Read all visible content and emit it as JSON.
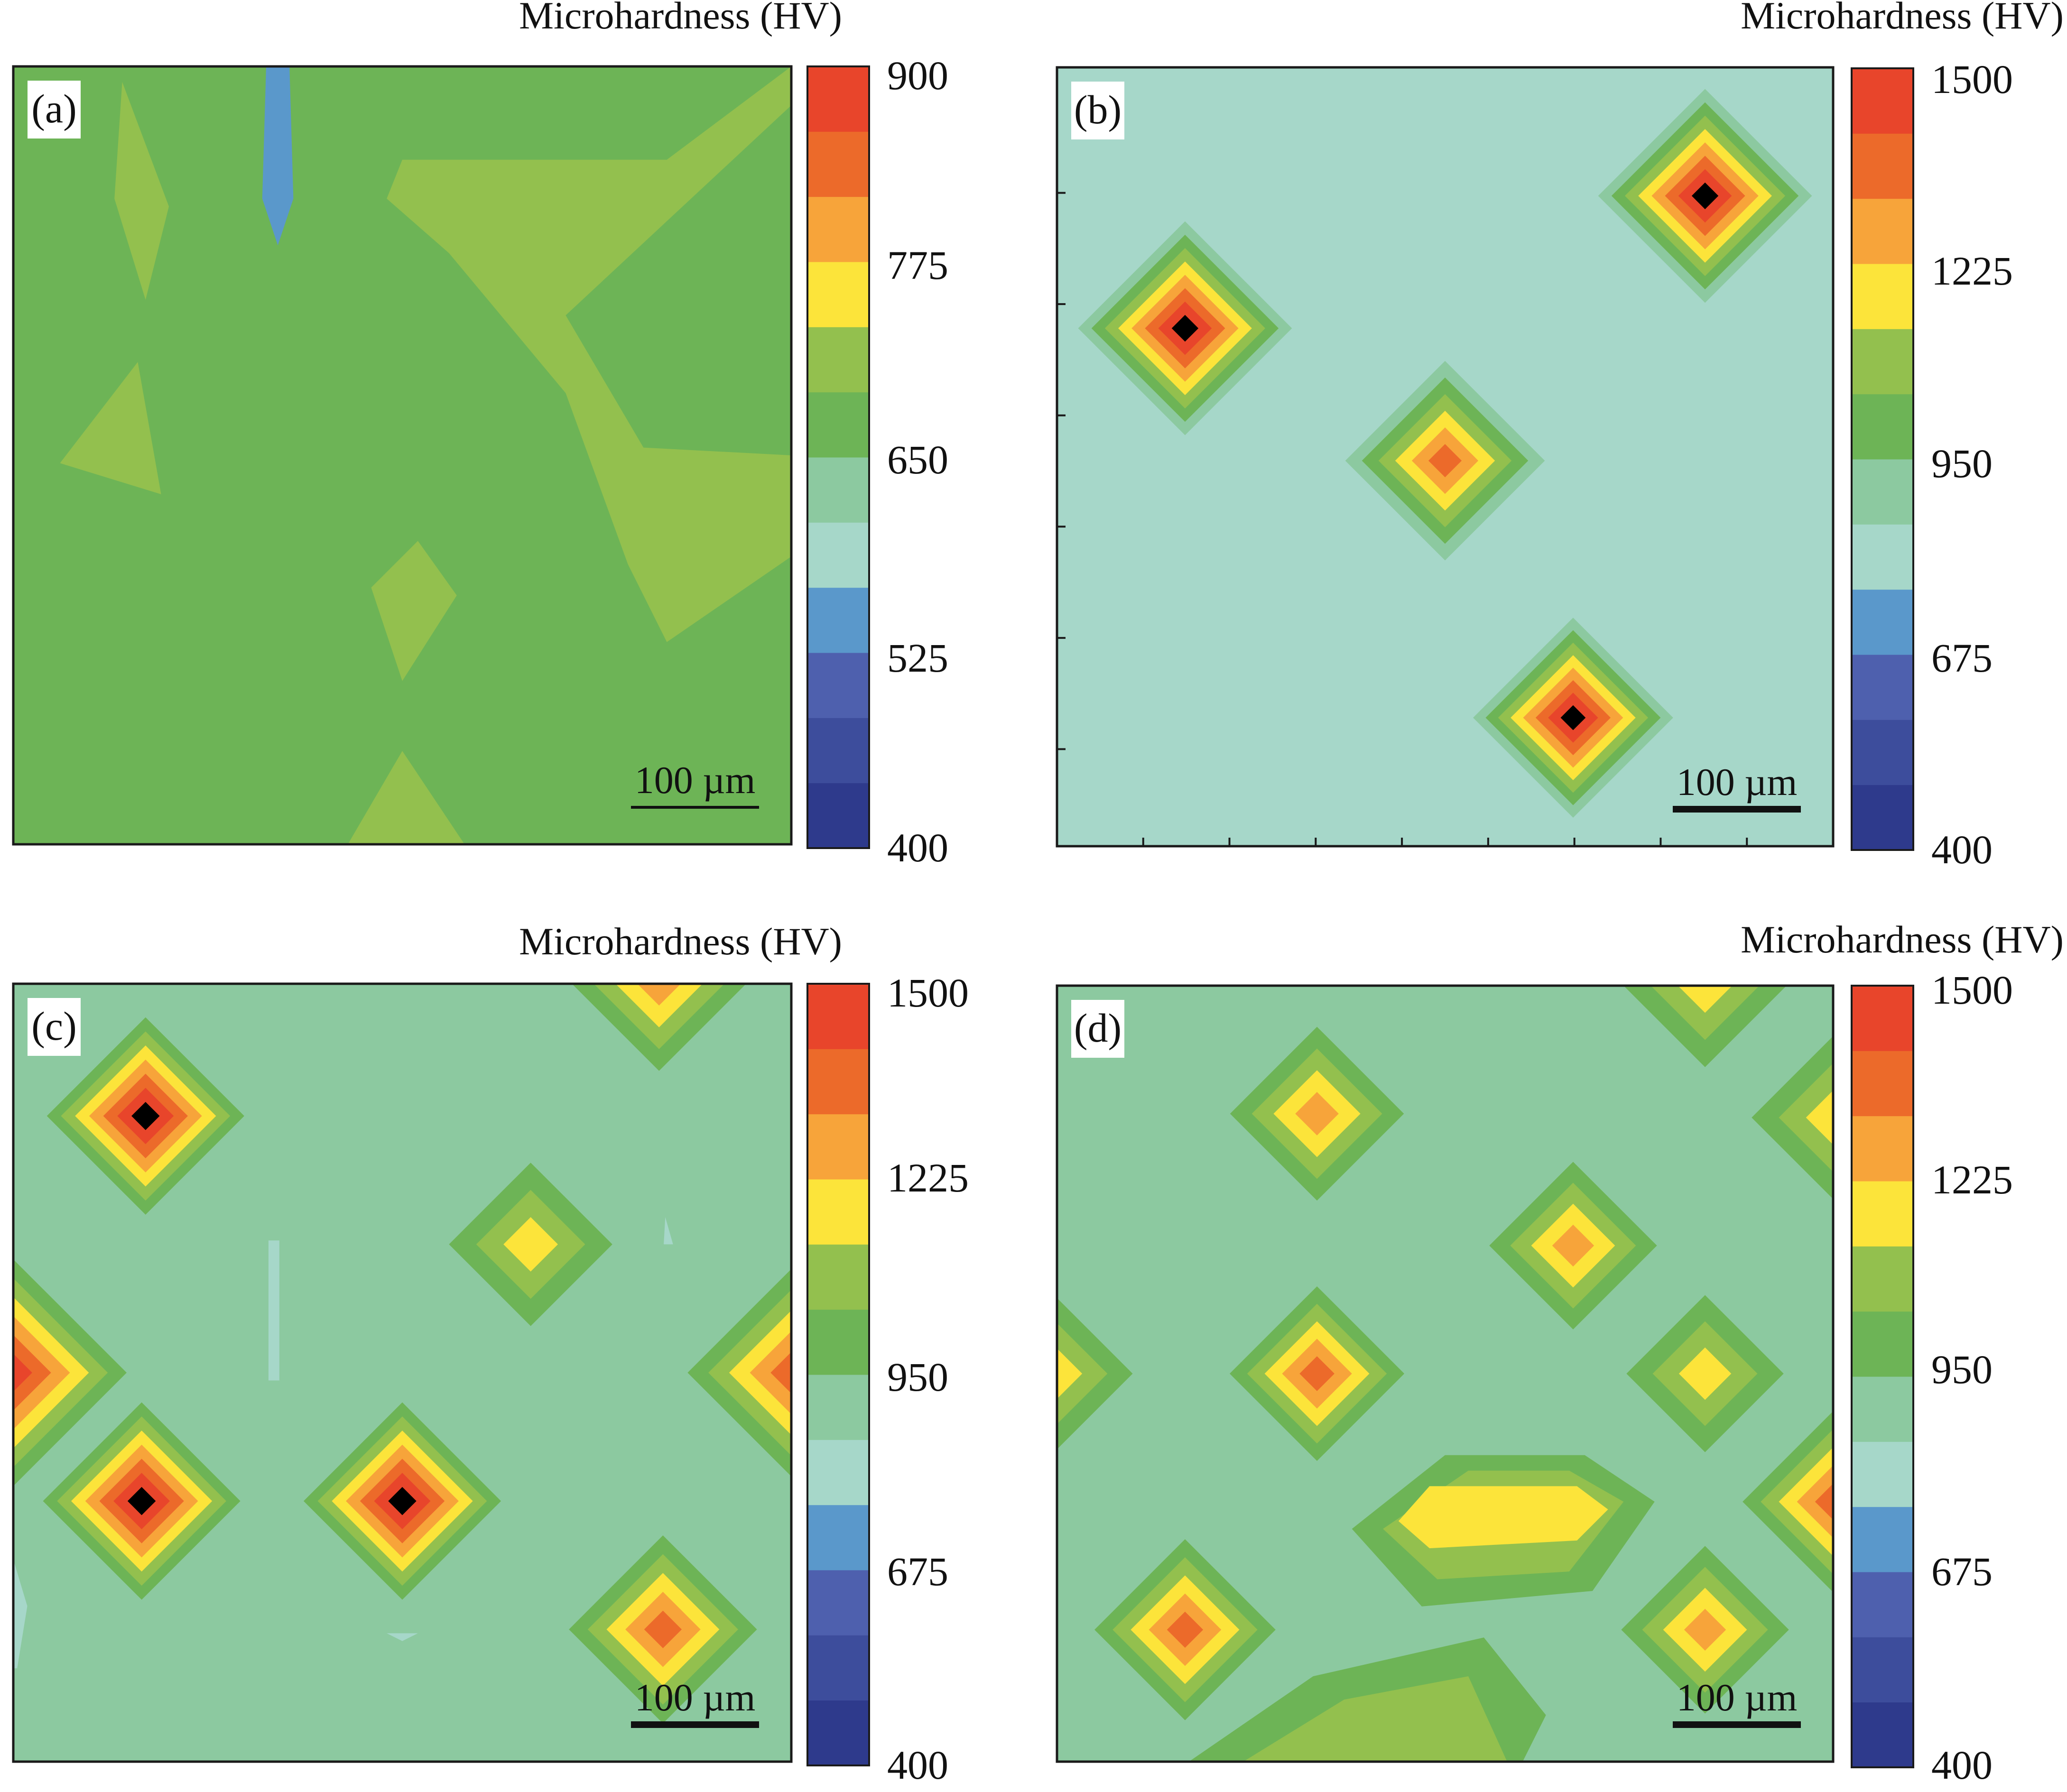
{
  "chart_data": [
    {
      "type": "heatmap",
      "panel_label": "(a)",
      "colorbar_title": "Microhardness (HV)",
      "colorbar_ticks": [
        "900",
        "775",
        "650",
        "525",
        "400"
      ],
      "colorbar_range": [
        400,
        900
      ],
      "scale_bar_label": "100 µm",
      "background_level": 6,
      "features": [
        {
          "shape": "polygon",
          "level": 7,
          "pts": [
            [
              0.14,
              0.02
            ],
            [
              0.2,
              0.18
            ],
            [
              0.17,
              0.3
            ],
            [
              0.13,
              0.17
            ]
          ]
        },
        {
          "shape": "polygon",
          "level": 3,
          "pts": [
            [
              0.325,
              0.0
            ],
            [
              0.355,
              0.0
            ],
            [
              0.36,
              0.17
            ],
            [
              0.34,
              0.23
            ],
            [
              0.32,
              0.17
            ]
          ]
        },
        {
          "shape": "polygon",
          "level": 7,
          "pts": [
            [
              0.16,
              0.38
            ],
            [
              0.19,
              0.55
            ],
            [
              0.06,
              0.51
            ]
          ]
        },
        {
          "shape": "polygon",
          "level": 7,
          "pts": [
            [
              0.5,
              0.12
            ],
            [
              0.84,
              0.12
            ],
            [
              1.0,
              0.0
            ],
            [
              1.0,
              0.05
            ],
            [
              0.71,
              0.32
            ],
            [
              0.81,
              0.49
            ],
            [
              1.0,
              0.5
            ],
            [
              1.0,
              0.63
            ],
            [
              0.84,
              0.74
            ],
            [
              0.79,
              0.64
            ],
            [
              0.71,
              0.42
            ],
            [
              0.56,
              0.24
            ],
            [
              0.48,
              0.17
            ]
          ]
        },
        {
          "shape": "polygon",
          "level": 7,
          "pts": [
            [
              0.52,
              0.61
            ],
            [
              0.57,
              0.68
            ],
            [
              0.5,
              0.79
            ],
            [
              0.46,
              0.67
            ]
          ]
        },
        {
          "shape": "polygon",
          "level": 7,
          "pts": [
            [
              0.5,
              0.88
            ],
            [
              0.58,
              1.0
            ],
            [
              0.43,
              1.0
            ]
          ]
        }
      ]
    },
    {
      "type": "heatmap",
      "panel_label": "(b)",
      "colorbar_title": "Microhardness (HV)",
      "colorbar_ticks": [
        "1500",
        "1225",
        "950",
        "675",
        "400"
      ],
      "colorbar_range": [
        400,
        1500
      ],
      "scale_bar_label": "100 µm",
      "background_level": 4,
      "features": [
        {
          "shape": "diamond",
          "cx": 0.165,
          "cy": 0.335,
          "r": 0.155,
          "peak": 12
        },
        {
          "shape": "diamond",
          "cx": 0.835,
          "cy": 0.165,
          "r": 0.155,
          "peak": 12
        },
        {
          "shape": "diamond",
          "cx": 0.5,
          "cy": 0.505,
          "r": 0.15,
          "peak": 10
        },
        {
          "shape": "diamond",
          "cx": 0.665,
          "cy": 0.835,
          "r": 0.145,
          "peak": 12
        }
      ]
    },
    {
      "type": "heatmap",
      "panel_label": "(c)",
      "colorbar_title": "Microhardness (HV)",
      "colorbar_ticks": [
        "1500",
        "1225",
        "950",
        "675",
        "400"
      ],
      "colorbar_range": [
        400,
        1500
      ],
      "scale_bar_label": "100 µm",
      "background_level": 5,
      "features": [
        {
          "shape": "diamond",
          "cx": 0.17,
          "cy": 0.17,
          "r": 0.145,
          "peak": 12
        },
        {
          "shape": "diamond",
          "cx": 0.83,
          "cy": 0.0,
          "r": 0.14,
          "peak": 9
        },
        {
          "shape": "diamond",
          "cx": 0.665,
          "cy": 0.335,
          "r": 0.14,
          "peak": 8
        },
        {
          "shape": "diamond",
          "cx": 0.0,
          "cy": 0.5,
          "r": 0.17,
          "peak": 11
        },
        {
          "shape": "diamond",
          "cx": 1.0,
          "cy": 0.5,
          "r": 0.16,
          "peak": 10
        },
        {
          "shape": "diamond",
          "cx": 0.165,
          "cy": 0.665,
          "r": 0.145,
          "peak": 12
        },
        {
          "shape": "diamond",
          "cx": 0.5,
          "cy": 0.665,
          "r": 0.145,
          "peak": 12
        },
        {
          "shape": "diamond",
          "cx": 0.835,
          "cy": 0.83,
          "r": 0.145,
          "peak": 10
        },
        {
          "shape": "polygon",
          "level": 4,
          "pts": [
            [
              0.328,
              0.33
            ],
            [
              0.342,
              0.33
            ],
            [
              0.342,
              0.51
            ],
            [
              0.328,
              0.51
            ]
          ]
        },
        {
          "shape": "polygon",
          "level": 4,
          "pts": [
            [
              0.838,
              0.3
            ],
            [
              0.848,
              0.335
            ],
            [
              0.836,
              0.335
            ]
          ]
        },
        {
          "shape": "polygon",
          "level": 4,
          "pts": [
            [
              0.0,
              0.74
            ],
            [
              0.018,
              0.8
            ],
            [
              0.005,
              0.88
            ],
            [
              0.0,
              0.88
            ]
          ]
        },
        {
          "shape": "polygon",
          "level": 4,
          "pts": [
            [
              0.48,
              0.835
            ],
            [
              0.52,
              0.835
            ],
            [
              0.5,
              0.845
            ]
          ]
        }
      ]
    },
    {
      "type": "heatmap",
      "panel_label": "(d)",
      "colorbar_title": "Microhardness (HV)",
      "colorbar_ticks": [
        "1500",
        "1225",
        "950",
        "675",
        "400"
      ],
      "colorbar_range": [
        400,
        1500
      ],
      "scale_bar_label": "100 µm",
      "background_level": 5,
      "features": [
        {
          "shape": "diamond",
          "cx": 0.835,
          "cy": 0.0,
          "r": 0.14,
          "peak": 8
        },
        {
          "shape": "diamond",
          "cx": 1.0,
          "cy": 0.17,
          "r": 0.14,
          "peak": 8
        },
        {
          "shape": "diamond",
          "cx": 0.335,
          "cy": 0.165,
          "r": 0.14,
          "peak": 9
        },
        {
          "shape": "diamond",
          "cx": 0.665,
          "cy": 0.335,
          "r": 0.135,
          "peak": 9
        },
        {
          "shape": "diamond",
          "cx": 0.0,
          "cy": 0.5,
          "r": 0.13,
          "peak": 8
        },
        {
          "shape": "diamond",
          "cx": 0.335,
          "cy": 0.5,
          "r": 0.135,
          "peak": 10
        },
        {
          "shape": "diamond",
          "cx": 0.835,
          "cy": 0.5,
          "r": 0.135,
          "peak": 8
        },
        {
          "shape": "diamond",
          "cx": 1.0,
          "cy": 0.665,
          "r": 0.14,
          "peak": 10
        },
        {
          "shape": "diamond",
          "cx": 0.165,
          "cy": 0.83,
          "r": 0.14,
          "peak": 10
        },
        {
          "shape": "diamond",
          "cx": 0.835,
          "cy": 0.83,
          "r": 0.135,
          "peak": 9
        },
        {
          "shape": "polygon",
          "level": 6,
          "pts": [
            [
              0.5,
              0.605
            ],
            [
              0.68,
              0.605
            ],
            [
              0.77,
              0.665
            ],
            [
              0.69,
              0.78
            ],
            [
              0.47,
              0.8
            ],
            [
              0.38,
              0.7
            ]
          ]
        },
        {
          "shape": "polygon",
          "level": 7,
          "pts": [
            [
              0.53,
              0.625
            ],
            [
              0.66,
              0.625
            ],
            [
              0.73,
              0.665
            ],
            [
              0.66,
              0.755
            ],
            [
              0.49,
              0.765
            ],
            [
              0.42,
              0.7
            ]
          ]
        },
        {
          "shape": "polygon",
          "level": 8,
          "pts": [
            [
              0.48,
              0.645
            ],
            [
              0.67,
              0.645
            ],
            [
              0.71,
              0.675
            ],
            [
              0.67,
              0.715
            ],
            [
              0.48,
              0.725
            ],
            [
              0.44,
              0.69
            ]
          ]
        },
        {
          "shape": "polygon",
          "level": 6,
          "pts": [
            [
              0.17,
              1.0
            ],
            [
              0.33,
              0.89
            ],
            [
              0.55,
              0.84
            ],
            [
              0.63,
              0.94
            ],
            [
              0.6,
              1.0
            ]
          ]
        },
        {
          "shape": "polygon",
          "level": 7,
          "pts": [
            [
              0.24,
              1.0
            ],
            [
              0.37,
              0.92
            ],
            [
              0.53,
              0.89
            ],
            [
              0.58,
              1.0
            ]
          ]
        }
      ]
    }
  ]
}
